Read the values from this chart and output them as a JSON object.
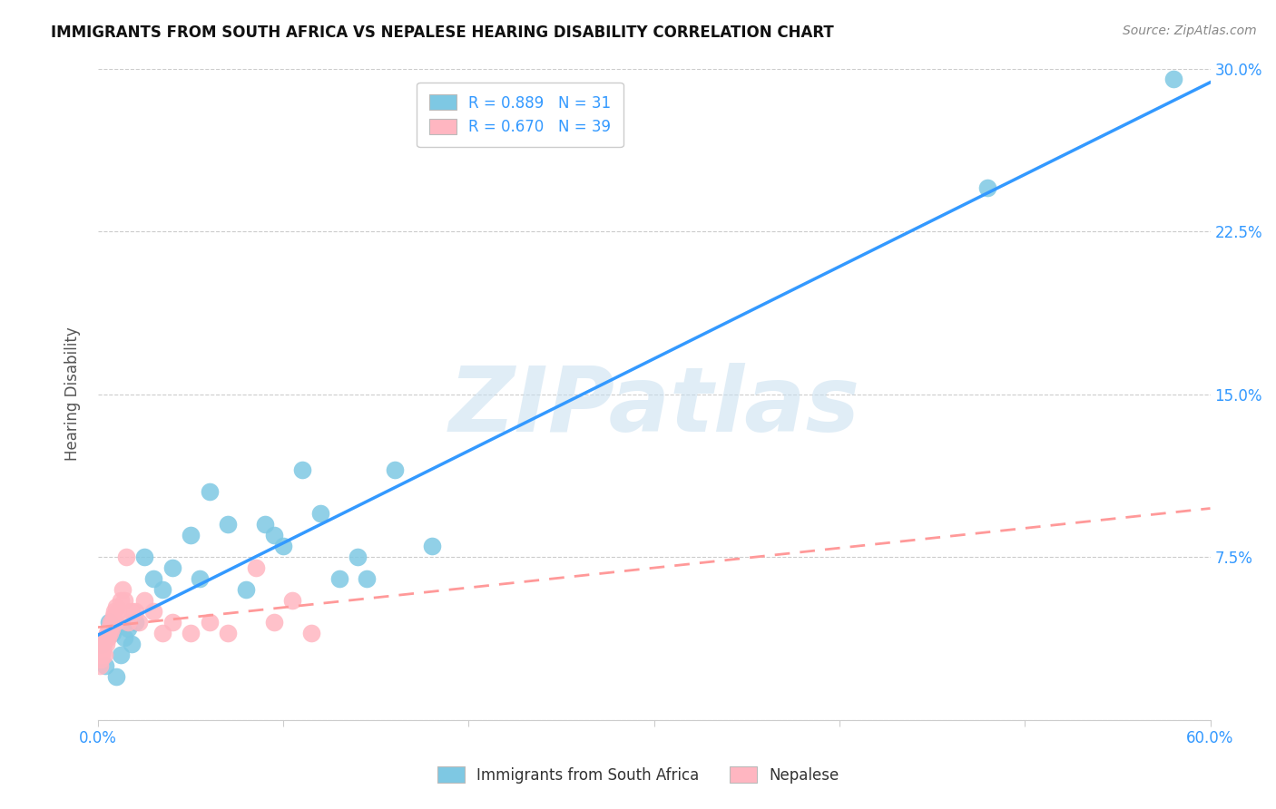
{
  "title": "IMMIGRANTS FROM SOUTH AFRICA VS NEPALESE HEARING DISABILITY CORRELATION CHART",
  "source": "Source: ZipAtlas.com",
  "ylabel_label": "Hearing Disability",
  "legend_blue_R": "R = 0.889",
  "legend_blue_N": "N = 31",
  "legend_pink_R": "R = 0.670",
  "legend_pink_N": "N = 39",
  "legend_blue_label": "Immigrants from South Africa",
  "legend_pink_label": "Nepalese",
  "blue_scatter_x": [
    0.2,
    0.4,
    0.6,
    0.8,
    1.0,
    1.2,
    1.4,
    1.6,
    1.8,
    2.0,
    2.5,
    3.0,
    3.5,
    4.0,
    5.0,
    5.5,
    6.0,
    7.0,
    8.0,
    9.0,
    9.5,
    10.0,
    11.0,
    12.0,
    13.0,
    14.0,
    14.5,
    16.0,
    18.0,
    48.0,
    58.0
  ],
  "blue_scatter_y": [
    3.5,
    2.5,
    4.5,
    4.0,
    2.0,
    3.0,
    3.8,
    4.2,
    3.5,
    4.5,
    7.5,
    6.5,
    6.0,
    7.0,
    8.5,
    6.5,
    10.5,
    9.0,
    6.0,
    9.0,
    8.5,
    8.0,
    11.5,
    9.5,
    6.5,
    7.5,
    6.5,
    11.5,
    8.0,
    24.5,
    29.5
  ],
  "pink_scatter_x": [
    0.1,
    0.15,
    0.2,
    0.25,
    0.3,
    0.35,
    0.4,
    0.45,
    0.5,
    0.55,
    0.6,
    0.65,
    0.7,
    0.75,
    0.8,
    0.85,
    0.9,
    0.95,
    1.0,
    1.1,
    1.2,
    1.3,
    1.4,
    1.5,
    1.6,
    1.8,
    2.0,
    2.2,
    2.5,
    3.0,
    3.5,
    4.0,
    5.0,
    6.0,
    7.0,
    8.5,
    9.5,
    10.5,
    11.5
  ],
  "pink_scatter_y": [
    2.5,
    2.8,
    3.0,
    3.2,
    3.5,
    3.0,
    3.8,
    3.5,
    4.0,
    3.8,
    4.2,
    4.0,
    4.5,
    4.2,
    4.5,
    4.8,
    5.0,
    4.5,
    5.2,
    5.0,
    5.5,
    6.0,
    5.5,
    7.5,
    4.5,
    5.0,
    5.0,
    4.5,
    5.5,
    5.0,
    4.0,
    4.5,
    4.0,
    4.5,
    4.0,
    7.0,
    4.5,
    5.5,
    4.0
  ],
  "blue_color": "#7EC8E3",
  "pink_color": "#FFB6C1",
  "blue_line_color": "#3399FF",
  "pink_line_color": "#FF9999",
  "watermark_text": "ZIPatlas",
  "xlim": [
    0,
    60
  ],
  "ylim": [
    0,
    30
  ],
  "x_tick_positions": [
    0,
    10,
    20,
    30,
    40,
    50,
    60
  ],
  "x_tick_labels": [
    "0.0%",
    "",
    "",
    "",
    "",
    "",
    "60.0%"
  ],
  "y_ticks": [
    0,
    7.5,
    15.0,
    22.5,
    30.0
  ],
  "y_tick_labels": [
    "",
    "7.5%",
    "15.0%",
    "22.5%",
    "30.0%"
  ],
  "background_color": "#ffffff"
}
